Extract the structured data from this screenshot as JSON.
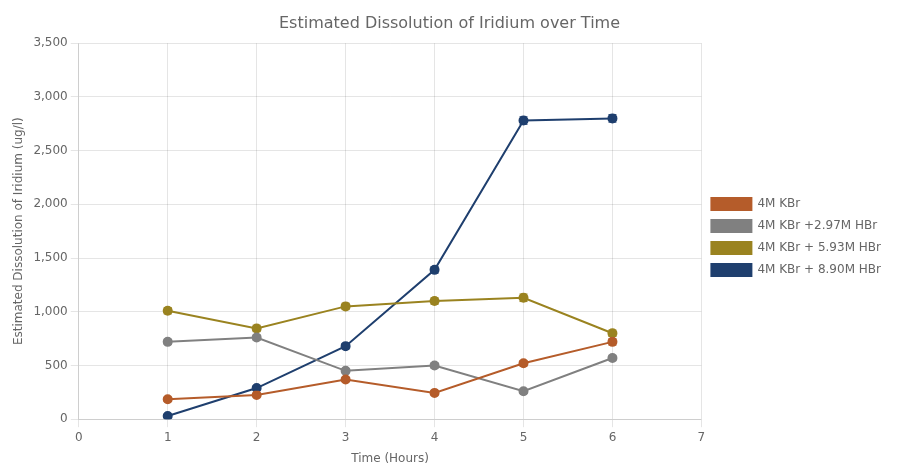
{
  "chart_data": {
    "type": "line",
    "title": "Estimated Dissolution of Iridium over Time",
    "xlabel": "Time (Hours)",
    "ylabel": "Estimated Dissolution of Iridium (ug/l)",
    "xlim": [
      0,
      7
    ],
    "ylim": [
      0,
      3500
    ],
    "xticks": [
      0,
      1,
      2,
      3,
      4,
      5,
      6,
      7
    ],
    "yticks": [
      0,
      500,
      1000,
      1500,
      2000,
      2500,
      3000,
      3500
    ],
    "x": [
      1,
      2,
      3,
      4,
      5,
      6
    ],
    "series": [
      {
        "name": "4M KBr",
        "color": "#B55C2A",
        "values": [
          185,
          225,
          370,
          245,
          520,
          720
        ],
        "yerr": [
          20,
          15,
          20,
          20,
          25,
          30
        ]
      },
      {
        "name": "4M KBr +2.97M HBr",
        "color": "#808080",
        "values": [
          720,
          760,
          450,
          500,
          260,
          570
        ],
        "yerr": [
          25,
          25,
          20,
          25,
          20,
          25
        ]
      },
      {
        "name": "4M KBr + 5.93M HBr",
        "color": "#9A8320",
        "values": [
          1010,
          845,
          1050,
          1100,
          1130,
          800
        ],
        "yerr": [
          30,
          30,
          30,
          30,
          35,
          30
        ]
      },
      {
        "name": "4M KBr + 8.90M HBr",
        "color": "#1F3F6E",
        "values": [
          30,
          290,
          680,
          1390,
          2780,
          2800
        ],
        "yerr": [
          15,
          20,
          25,
          30,
          35,
          35
        ]
      }
    ],
    "marker": "circle",
    "grid": true,
    "legend": "right"
  }
}
